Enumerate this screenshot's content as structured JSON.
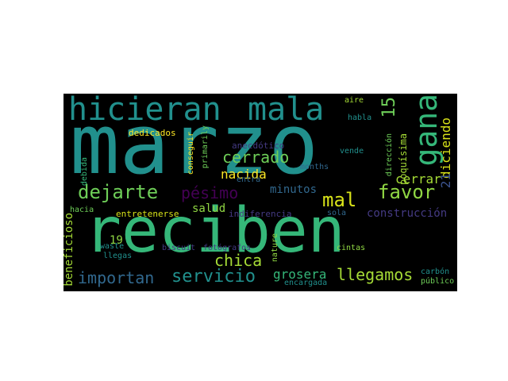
{
  "palette": {
    "background": "#000000",
    "teal": "#21908d",
    "green": "#35b779",
    "lime": "#a5db36",
    "yellow": "#d8e219",
    "blue": "#31688e",
    "indigo": "#443a83",
    "purple": "#440154",
    "slate": "#3b528b"
  },
  "words": [
    {
      "id": "marzo",
      "text": "marzo",
      "color": "#21908d"
    },
    {
      "id": "reciben",
      "text": "reciben",
      "color": "#35b779"
    },
    {
      "id": "hicieran",
      "text": "hicieran",
      "color": "#21908d"
    },
    {
      "id": "mala",
      "text": "mala",
      "color": "#21908d"
    },
    {
      "id": "gana",
      "text": "gana",
      "color": "#35b779"
    },
    {
      "id": "n15",
      "text": "15",
      "color": "#6ece58"
    },
    {
      "id": "dejarte",
      "text": "dejarte",
      "color": "#6ece58"
    },
    {
      "id": "pesimo",
      "text": "pésimo",
      "color": "#440154"
    },
    {
      "id": "mal",
      "text": "mal",
      "color": "#d8e219"
    },
    {
      "id": "favor",
      "text": "favor",
      "color": "#90d743"
    },
    {
      "id": "diciendo",
      "text": "diciendo",
      "color": "#d8e219"
    },
    {
      "id": "cerrado",
      "text": "cerrado",
      "color": "#6ece58"
    },
    {
      "id": "nacida",
      "text": "nacida",
      "color": "#fde725"
    },
    {
      "id": "minutos",
      "text": "minutos",
      "color": "#31688e"
    },
    {
      "id": "cerrar",
      "text": "cerrar",
      "color": "#a5db36"
    },
    {
      "id": "n21",
      "text": "21",
      "color": "#3b528b"
    },
    {
      "id": "salud",
      "text": "salud",
      "color": "#90d743"
    },
    {
      "id": "chica",
      "text": "chica",
      "color": "#a5db36"
    },
    {
      "id": "importan",
      "text": "importan",
      "color": "#31688e"
    },
    {
      "id": "servicio",
      "text": "servicio",
      "color": "#21908d"
    },
    {
      "id": "grosera",
      "text": "grosera",
      "color": "#35b779"
    },
    {
      "id": "llegamos",
      "text": "llegamos",
      "color": "#a5db36"
    },
    {
      "id": "construccion",
      "text": "construcción",
      "color": "#443a83"
    },
    {
      "id": "beneficioso",
      "text": "beneficioso",
      "color": "#a5db36"
    },
    {
      "id": "n19",
      "text": "19",
      "color": "#90d743"
    },
    {
      "id": "entretenerse",
      "text": "entretenerse",
      "color": "#d8e219"
    },
    {
      "id": "indiferencia",
      "text": "indiferencia",
      "color": "#443a83"
    },
    {
      "id": "anecdotico",
      "text": "anecdótico",
      "color": "#443a83"
    },
    {
      "id": "dedicados",
      "text": "dedicados",
      "color": "#fde725"
    },
    {
      "id": "debida",
      "text": "debida",
      "color": "#35b779"
    },
    {
      "id": "hacia",
      "text": "hacia",
      "color": "#6ece58"
    },
    {
      "id": "conseguir",
      "text": "conseguir",
      "color": "#fde725"
    },
    {
      "id": "primarily",
      "text": "primarily",
      "color": "#6ece58"
    },
    {
      "id": "habla",
      "text": "habla",
      "color": "#21908d"
    },
    {
      "id": "aire",
      "text": "aire",
      "color": "#a5db36"
    },
    {
      "id": "vende",
      "text": "vende",
      "color": "#21908d"
    },
    {
      "id": "direccion",
      "text": "dirección",
      "color": "#6ece58"
    },
    {
      "id": "poquisima",
      "text": "poquísima",
      "color": "#a5db36"
    },
    {
      "id": "months",
      "text": "months",
      "color": "#31688e"
    },
    {
      "id": "entra",
      "text": "entra",
      "color": "#31688e"
    },
    {
      "id": "sola",
      "text": "sola",
      "color": "#31688e"
    },
    {
      "id": "waste",
      "text": "waste",
      "color": "#21908d"
    },
    {
      "id": "llegas",
      "text": "llegas",
      "color": "#21908d"
    },
    {
      "id": "biscuit",
      "text": "biscuit",
      "color": "#443a83"
    },
    {
      "id": "fotografos",
      "text": "fotógrafos",
      "color": "#443a83"
    },
    {
      "id": "nature",
      "text": "nature",
      "color": "#90d743"
    },
    {
      "id": "cintas",
      "text": "cintas",
      "color": "#90d743"
    },
    {
      "id": "carbon",
      "text": "carbón",
      "color": "#21908d"
    },
    {
      "id": "encargada",
      "text": "encargada",
      "color": "#21908d"
    },
    {
      "id": "publico",
      "text": "público",
      "color": "#6ece58"
    }
  ]
}
